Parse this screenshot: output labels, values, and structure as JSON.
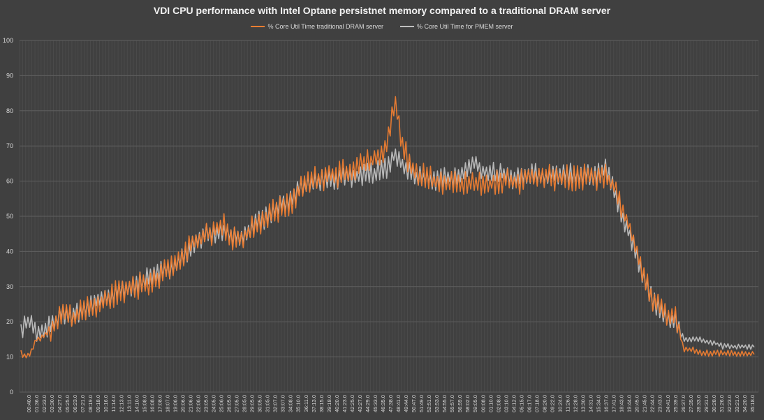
{
  "chart_data": {
    "type": "line",
    "title": "VDI CPU performance with Intel Optane persistnet memory compared to a traditional DRAM server",
    "xlabel": "",
    "ylabel": "",
    "ylim": [
      0,
      100
    ],
    "y_ticks": [
      0,
      10,
      20,
      30,
      40,
      50,
      60,
      70,
      80,
      90,
      100
    ],
    "grid": true,
    "legend_position": "top-center",
    "x_tick_labels": [
      "00:40.0",
      "01:36.0",
      "02:33.0",
      "03:30.0",
      "04:27.0",
      "05:25.0",
      "06:23.0",
      "07:21.0",
      "08:19.0",
      "09:18.0",
      "10:16.0",
      "11:14.0",
      "12:13.0",
      "13:11.0",
      "14:10.0",
      "15:08.0",
      "16:08.0",
      "17:08.0",
      "18:07.0",
      "19:06.0",
      "20:06.0",
      "21:06.0",
      "22:06.0",
      "23:05.0",
      "24:05.0",
      "25:06.0",
      "26:05.0",
      "27:05.0",
      "28:05.0",
      "29:05.0",
      "30:05.0",
      "31:05.0",
      "32:07.0",
      "33:07.0",
      "34:08.0",
      "35:10.0",
      "36:11.0",
      "37:13.0",
      "38:15.0",
      "39:18.0",
      "40:20.0",
      "41:23.0",
      "42:25.0",
      "43:27.0",
      "44:29.0",
      "45:33.0",
      "46:35.0",
      "47:38.0",
      "48:41.0",
      "49:44.0",
      "50:47.0",
      "51:49.0",
      "52:51.0",
      "53:53.0",
      "54:55.0",
      "55:57.0",
      "56:59.0",
      "58:02.0",
      "59:05.0",
      "00:08.0",
      "01:10.0",
      "02:08.0",
      "03:10.0",
      "04:12.0",
      "05:15.0",
      "06:17.0",
      "07:18.0",
      "08:20.0",
      "09:22.0",
      "10:24.0",
      "11:26.0",
      "12:28.0",
      "13:30.0",
      "14:31.0",
      "15:34.0",
      "16:37.0",
      "17:41.0",
      "18:43.0",
      "19:44.0",
      "20:45.0",
      "21:45.0",
      "22:44.0",
      "23:43.0",
      "24:41.0",
      "25:39.0",
      "26:37.0",
      "27:35.0",
      "28:33.0",
      "29:31.0",
      "30:28.0",
      "31:26.0",
      "32:23.0",
      "33:21.0",
      "34:20.0",
      "35:18.0"
    ],
    "series": [
      {
        "name": "% Core Util Time traditional DRAM server",
        "color": "#ed7d31",
        "values": [
          11,
          10,
          15,
          16,
          18,
          23,
          22,
          21,
          23,
          24,
          25,
          26,
          28,
          29,
          30,
          30,
          31,
          32,
          33,
          35,
          38,
          40,
          42,
          44,
          45,
          46,
          47,
          44,
          44,
          45,
          47,
          49,
          51,
          52,
          53,
          55,
          58,
          60,
          61,
          61,
          62,
          62,
          63,
          64,
          65,
          66,
          67,
          72,
          82,
          70,
          64,
          61,
          62,
          60,
          60,
          59,
          60,
          59,
          60,
          59,
          59,
          60,
          60,
          60,
          60,
          61,
          61,
          61,
          61,
          61,
          61,
          61,
          61,
          61,
          61,
          61,
          59,
          53,
          47,
          40,
          32,
          26,
          24,
          22,
          21,
          12,
          12,
          11,
          11,
          11,
          11,
          11,
          11,
          11,
          11
        ]
      },
      {
        "name": "% Core Util Time for PMEM server",
        "color": "#bfbfbf",
        "values": [
          18,
          20,
          17,
          18,
          19,
          22,
          22,
          22,
          24,
          25,
          26,
          27,
          28,
          29,
          30,
          31,
          32,
          33,
          34,
          35,
          37,
          39,
          42,
          44,
          45,
          45,
          46,
          45,
          43,
          46,
          48,
          49,
          51,
          53,
          54,
          56,
          58,
          59,
          60,
          60,
          61,
          61,
          61,
          61,
          62,
          62,
          63,
          64,
          68,
          64,
          62,
          61,
          61,
          60,
          61,
          61,
          61,
          62,
          65,
          63,
          62,
          62,
          62,
          61,
          61,
          62,
          62,
          61,
          62,
          62,
          62,
          62,
          62,
          62,
          62,
          63,
          58,
          51,
          45,
          38,
          31,
          26,
          23,
          21,
          20,
          15,
          15,
          15,
          14,
          14,
          13,
          13,
          13,
          13,
          13
        ]
      }
    ]
  },
  "colors": {
    "background": "#404040",
    "grid": "#595959",
    "axis_text": "#d9d9d9"
  }
}
